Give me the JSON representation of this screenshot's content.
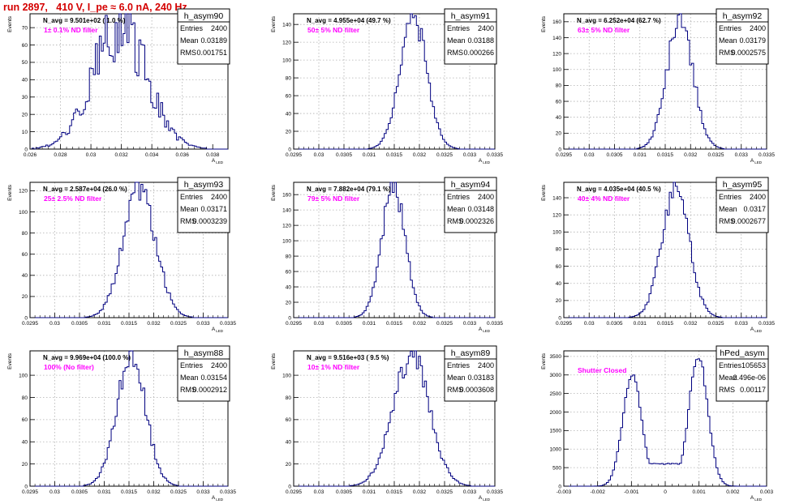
{
  "page": {
    "title": "run 2897,   410 V, I_pe ≈ 6.0 nA, 240 Hz",
    "title_color": "#d40000",
    "histogram_color": "#000080",
    "annotation_color": "#ff00ff",
    "y_axis_label": "Events",
    "x_axis_label": "A",
    "x_axis_label_sub": "LED",
    "stats_labels": {
      "entries": "Entries",
      "mean": "Mean",
      "rms": "RMS"
    }
  },
  "chart_data": [
    {
      "type": "histogram",
      "name": "h_asym90",
      "stats": {
        "entries": "2400",
        "mean": "0.03189",
        "rms": "0.001751"
      },
      "navg_text": "N_avg = 9.501e+02 ( 1.0 %)",
      "filter_text": "1± 0.1% ND filter",
      "distribution": {
        "center": 0.03189,
        "width": 0.00178,
        "peak": 70,
        "noise": 0.28
      },
      "xlim": [
        0.026,
        0.039
      ],
      "ylim": [
        0,
        78
      ],
      "xticks": [
        0.026,
        0.028,
        0.03,
        0.032,
        0.034,
        0.036,
        0.038
      ],
      "xtick_labels": [
        "0.026",
        "0.028",
        "0.03",
        "0.032",
        "0.034",
        "0.036",
        "0.038"
      ],
      "yticks": [
        0,
        10,
        20,
        30,
        40,
        50,
        60,
        70
      ],
      "ytick_labels": [
        "0",
        "10",
        "20",
        "30",
        "40",
        "50",
        "60",
        "70"
      ],
      "grid": true
    },
    {
      "type": "histogram",
      "name": "h_asym91",
      "stats": {
        "entries": "2400",
        "mean": "0.03188",
        "rms": "0.000266"
      },
      "navg_text": "N_avg = 4.955e+04 (49.7 %)",
      "filter_text": "50± 5% ND filter",
      "distribution": {
        "center": 0.03188,
        "width": 0.000266,
        "peak": 148,
        "noise": 0.1
      },
      "xlim": [
        0.0295,
        0.0335
      ],
      "ylim": [
        0,
        152
      ],
      "xticks": [
        0.0295,
        0.03,
        0.0305,
        0.031,
        0.0315,
        0.032,
        0.0325,
        0.033,
        0.0335
      ],
      "xtick_labels": [
        "0.0295",
        "0.03",
        "0.0305",
        "0.031",
        "0.0315",
        "0.032",
        "0.0325",
        "0.033",
        "0.0335"
      ],
      "yticks": [
        0,
        20,
        40,
        60,
        80,
        100,
        120,
        140
      ],
      "ytick_labels": [
        "0",
        "20",
        "40",
        "60",
        "80",
        "100",
        "120",
        "140"
      ],
      "grid": true
    },
    {
      "type": "histogram",
      "name": "h_asym92",
      "stats": {
        "entries": "2400",
        "mean": "0.03179",
        "rms": "0.0002575"
      },
      "navg_text": "N_avg = 6.252e+04 (62.7 %)",
      "filter_text": "63± 5% ND filter",
      "distribution": {
        "center": 0.03179,
        "width": 0.0002575,
        "peak": 163,
        "noise": 0.1
      },
      "xlim": [
        0.0295,
        0.0335
      ],
      "ylim": [
        0,
        170
      ],
      "xticks": [
        0.0295,
        0.03,
        0.0305,
        0.031,
        0.0315,
        0.032,
        0.0325,
        0.033,
        0.0335
      ],
      "xtick_labels": [
        "0.0295",
        "0.03",
        "0.0305",
        "0.031",
        "0.0315",
        "0.032",
        "0.0325",
        "0.033",
        "0.0335"
      ],
      "yticks": [
        0,
        20,
        40,
        60,
        80,
        100,
        120,
        140,
        160
      ],
      "ytick_labels": [
        "0",
        "20",
        "40",
        "60",
        "80",
        "100",
        "120",
        "140",
        "160"
      ],
      "grid": true
    },
    {
      "type": "histogram",
      "name": "h_asym93",
      "stats": {
        "entries": "2400",
        "mean": "0.03171",
        "rms": "0.0003239"
      },
      "navg_text": "N_avg = 2.587e+04 (26.0 %)",
      "filter_text": "25± 2.5% ND filter",
      "distribution": {
        "center": 0.03171,
        "width": 0.0003239,
        "peak": 124,
        "noise": 0.12
      },
      "xlim": [
        0.0295,
        0.0335
      ],
      "ylim": [
        0,
        128
      ],
      "xticks": [
        0.0295,
        0.03,
        0.0305,
        0.031,
        0.0315,
        0.032,
        0.0325,
        0.033,
        0.0335
      ],
      "xtick_labels": [
        "0.0295",
        "0.03",
        "0.0305",
        "0.031",
        "0.0315",
        "0.032",
        "0.0325",
        "0.033",
        "0.0335"
      ],
      "yticks": [
        0,
        20,
        40,
        60,
        80,
        100,
        120
      ],
      "ytick_labels": [
        "0",
        "20",
        "40",
        "60",
        "80",
        "100",
        "120"
      ],
      "grid": true
    },
    {
      "type": "histogram",
      "name": "h_asym94",
      "stats": {
        "entries": "2400",
        "mean": "0.03148",
        "rms": "0.0002326"
      },
      "navg_text": "N_avg = 7.882e+04 (79.1 %)",
      "filter_text": "79± 5% ND filter",
      "distribution": {
        "center": 0.03148,
        "width": 0.0002326,
        "peak": 171,
        "noise": 0.1
      },
      "xlim": [
        0.0295,
        0.0335
      ],
      "ylim": [
        0,
        176
      ],
      "xticks": [
        0.0295,
        0.03,
        0.0305,
        0.031,
        0.0315,
        0.032,
        0.0325,
        0.033,
        0.0335
      ],
      "xtick_labels": [
        "0.0295",
        "0.03",
        "0.0305",
        "0.031",
        "0.0315",
        "0.032",
        "0.0325",
        "0.033",
        "0.0335"
      ],
      "yticks": [
        0,
        20,
        40,
        60,
        80,
        100,
        120,
        140,
        160
      ],
      "ytick_labels": [
        "0",
        "20",
        "40",
        "60",
        "80",
        "100",
        "120",
        "140",
        "160"
      ],
      "grid": true
    },
    {
      "type": "histogram",
      "name": "h_asym95",
      "stats": {
        "entries": "2400",
        "mean": "0.0317",
        "rms": "0.0002677"
      },
      "navg_text": "N_avg = 4.035e+04 (40.5 %)",
      "filter_text": "40± 4% ND filter",
      "distribution": {
        "center": 0.0317,
        "width": 0.0002677,
        "peak": 152,
        "noise": 0.1
      },
      "xlim": [
        0.0295,
        0.0335
      ],
      "ylim": [
        0,
        158
      ],
      "xticks": [
        0.0295,
        0.03,
        0.0305,
        0.031,
        0.0315,
        0.032,
        0.0325,
        0.033,
        0.0335
      ],
      "xtick_labels": [
        "0.0295",
        "0.03",
        "0.0305",
        "0.031",
        "0.0315",
        "0.032",
        "0.0325",
        "0.033",
        "0.0335"
      ],
      "yticks": [
        0,
        20,
        40,
        60,
        80,
        100,
        120,
        140
      ],
      "ytick_labels": [
        "0",
        "20",
        "40",
        "60",
        "80",
        "100",
        "120",
        "140"
      ],
      "grid": true
    },
    {
      "type": "histogram",
      "name": "h_asym88",
      "stats": {
        "entries": "2400",
        "mean": "0.03154",
        "rms": "0.0002912"
      },
      "navg_text": "N_avg = 9.969e+04 (100.0 %)",
      "filter_text": "100% (No filter)",
      "distribution": {
        "center": 0.03154,
        "width": 0.0002912,
        "peak": 118,
        "noise": 0.12
      },
      "xlim": [
        0.0295,
        0.0335
      ],
      "ylim": [
        0,
        122
      ],
      "xticks": [
        0.0295,
        0.03,
        0.0305,
        0.031,
        0.0315,
        0.032,
        0.0325,
        0.033,
        0.0335
      ],
      "xtick_labels": [
        "0.0295",
        "0.03",
        "0.0305",
        "0.031",
        "0.0315",
        "0.032",
        "0.0325",
        "0.033",
        "0.0335"
      ],
      "yticks": [
        0,
        20,
        40,
        60,
        80,
        100
      ],
      "ytick_labels": [
        "0",
        "20",
        "40",
        "60",
        "80",
        "100"
      ],
      "grid": true
    },
    {
      "type": "histogram",
      "name": "h_asym89",
      "stats": {
        "entries": "2400",
        "mean": "0.03183",
        "rms": "0.0003608"
      },
      "navg_text": "N_avg = 9.516e+03 ( 9.5 %)",
      "filter_text": "10± 1% ND filter",
      "distribution": {
        "center": 0.03183,
        "width": 0.0003608,
        "peak": 118,
        "noise": 0.12
      },
      "xlim": [
        0.0295,
        0.0335
      ],
      "ylim": [
        0,
        122
      ],
      "xticks": [
        0.0295,
        0.03,
        0.0305,
        0.031,
        0.0315,
        0.032,
        0.0325,
        0.033,
        0.0335
      ],
      "xtick_labels": [
        "0.0295",
        "0.03",
        "0.0305",
        "0.031",
        "0.0315",
        "0.032",
        "0.0325",
        "0.033",
        "0.0335"
      ],
      "yticks": [
        0,
        20,
        40,
        60,
        80,
        100
      ],
      "ytick_labels": [
        "0",
        "20",
        "40",
        "60",
        "80",
        "100"
      ],
      "grid": true
    },
    {
      "type": "histogram",
      "name": "hPed_asym",
      "stats": {
        "entries": "105653",
        "mean": "-2.496e-06",
        "rms": "0.00117"
      },
      "navg_text": "",
      "filter_text": "Shutter Closed",
      "distribution": {
        "peaks": [
          {
            "center": -0.00098,
            "width": 0.00028,
            "height": 3000
          },
          {
            "center": 0.00098,
            "width": 0.00028,
            "height": 3500
          }
        ],
        "floor": 600,
        "noise": 0.03
      },
      "xlim": [
        -0.003,
        0.003
      ],
      "ylim": [
        0,
        3650
      ],
      "xticks": [
        -0.003,
        -0.002,
        -0.001,
        0,
        0.001,
        0.002,
        0.003
      ],
      "xtick_labels": [
        "-0.003",
        "-0.002",
        "-0.001",
        "0",
        "0.001",
        "0.002",
        "0.003"
      ],
      "yticks": [
        0,
        500,
        1000,
        1500,
        2000,
        2500,
        3000,
        3500
      ],
      "ytick_labels": [
        "0",
        "500",
        "1000",
        "1500",
        "2000",
        "2500",
        "3000",
        "3500"
      ],
      "grid": true
    }
  ]
}
